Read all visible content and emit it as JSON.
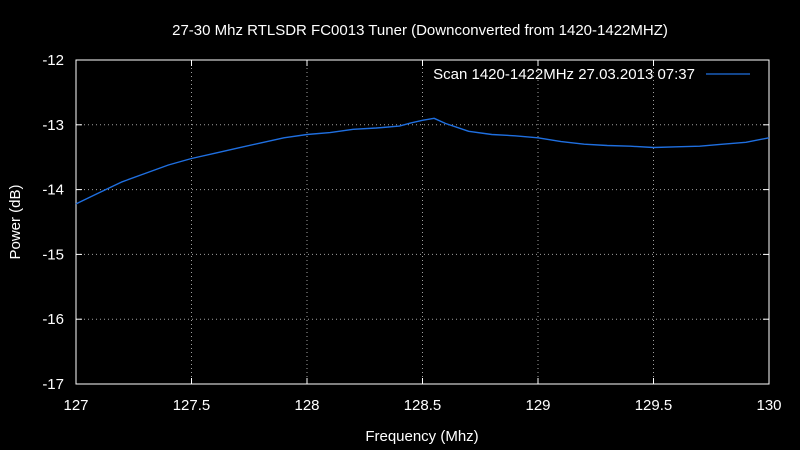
{
  "chart_data": {
    "type": "line",
    "title": "27-30 Mhz RTLSDR FC0013 Tuner (Downconverted from 1420-1422MHZ)",
    "xlabel": "Frequency (Mhz)",
    "ylabel": "Power (dB)",
    "xlim": [
      127,
      130
    ],
    "ylim": [
      -17,
      -12
    ],
    "xticks": [
      127,
      127.5,
      128,
      128.5,
      129,
      129.5,
      130
    ],
    "xtick_labels": [
      "127",
      "127.5",
      "128",
      "128.5",
      "129",
      "129.5",
      "130"
    ],
    "yticks": [
      -12,
      -13,
      -14,
      -15,
      -16,
      -17
    ],
    "ytick_labels": [
      "-12",
      "-13",
      "-14",
      "-15",
      "-16",
      "-17"
    ],
    "grid": true,
    "legend_position": "top-right",
    "series": [
      {
        "name": "Scan 1420-1422MHz 27.03.2013 07:37",
        "color": "#1f6fe0",
        "x": [
          127.0,
          127.1,
          127.2,
          127.3,
          127.4,
          127.5,
          127.6,
          127.7,
          127.8,
          127.9,
          128.0,
          128.1,
          128.2,
          128.3,
          128.4,
          128.45,
          128.5,
          128.55,
          128.6,
          128.7,
          128.8,
          128.9,
          129.0,
          129.1,
          129.2,
          129.3,
          129.4,
          129.5,
          129.6,
          129.7,
          129.8,
          129.9,
          130.0
        ],
        "y": [
          -14.22,
          -14.05,
          -13.88,
          -13.75,
          -13.62,
          -13.52,
          -13.44,
          -13.36,
          -13.28,
          -13.2,
          -13.15,
          -13.12,
          -13.07,
          -13.05,
          -13.02,
          -12.97,
          -12.93,
          -12.9,
          -12.98,
          -13.1,
          -13.15,
          -13.17,
          -13.2,
          -13.26,
          -13.3,
          -13.32,
          -13.33,
          -13.35,
          -13.34,
          -13.33,
          -13.3,
          -13.27,
          -13.2
        ]
      }
    ]
  }
}
